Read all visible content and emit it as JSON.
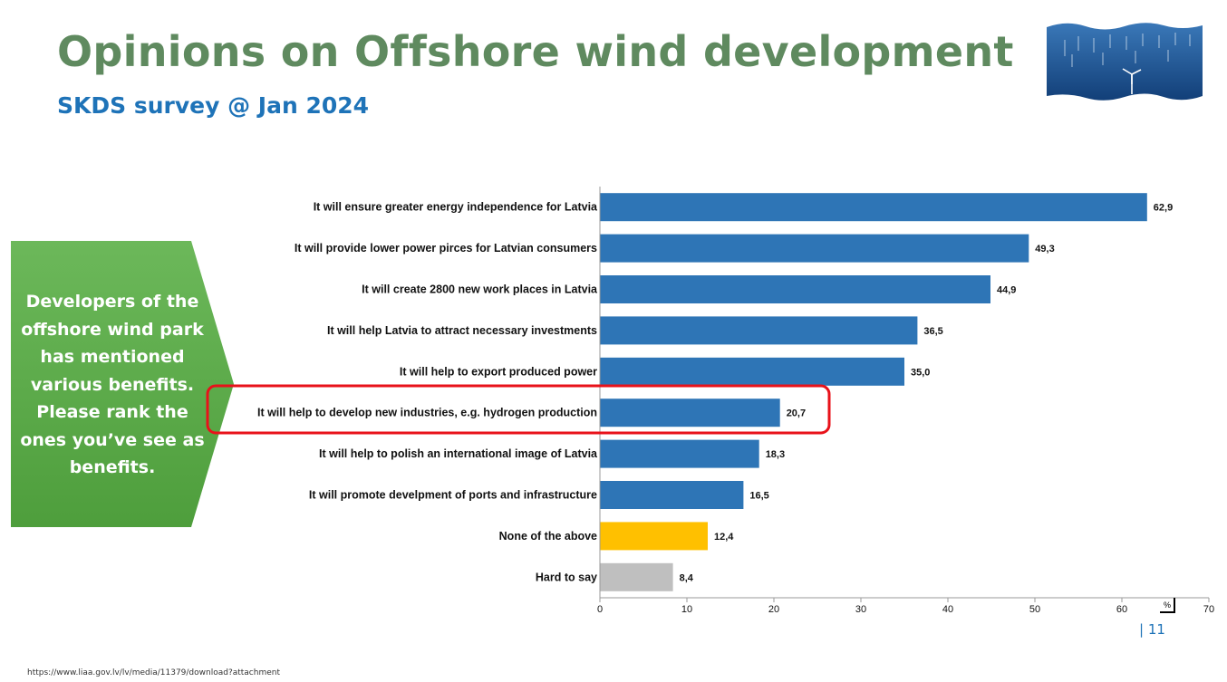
{
  "slide": {
    "title": "Opinions on Offshore wind development",
    "subtitle": "SKDS survey @ Jan 2024",
    "callout_text": "Developers of the offshore wind park has mentioned various benefits. Please rank the ones you’ve see as benefits.",
    "page_number": "| 11",
    "source_url": "https://www.liaa.gov.lv/lv/media/11379/download?attachment",
    "logo_icon": "offshore-wind-farm-image",
    "colors": {
      "title": "#5f8a5f",
      "subtitle": "#1e73b8",
      "callout": "#5aa846",
      "highlight": "#e8121a"
    }
  },
  "chart_data": {
    "type": "bar",
    "orientation": "horizontal",
    "categories": [
      "It will ensure greater energy independence for Latvia",
      "It will provide lower power pirces for Latvian consumers",
      "It will create 2800 new work places in Latvia",
      "It will help Latvia to attract necessary investments",
      "It will help to export produced power",
      "It will help to develop new industries, e.g. hydrogen production",
      "It will help to polish an international image of Latvia",
      "It will promote develpment of ports and infrastructure",
      "None of the above",
      "Hard to say"
    ],
    "values": [
      62.9,
      49.3,
      44.9,
      36.5,
      35.0,
      20.7,
      18.3,
      16.5,
      12.4,
      8.4
    ],
    "value_labels": [
      "62,9",
      "49,3",
      "44,9",
      "36,5",
      "35,0",
      "20,7",
      "18,3",
      "16,5",
      "12,4",
      "8,4"
    ],
    "bar_colors": [
      "#2e75b6",
      "#2e75b6",
      "#2e75b6",
      "#2e75b6",
      "#2e75b6",
      "#2e75b6",
      "#2e75b6",
      "#2e75b6",
      "#ffc000",
      "#bfbfbf"
    ],
    "highlighted_category": "It will help to develop new industries, e.g. hydrogen production",
    "xlim": [
      0,
      70
    ],
    "x_ticks": [
      "0",
      "10",
      "20",
      "30",
      "40",
      "50",
      "60",
      "70"
    ],
    "unit_label": "%",
    "grid": false
  }
}
